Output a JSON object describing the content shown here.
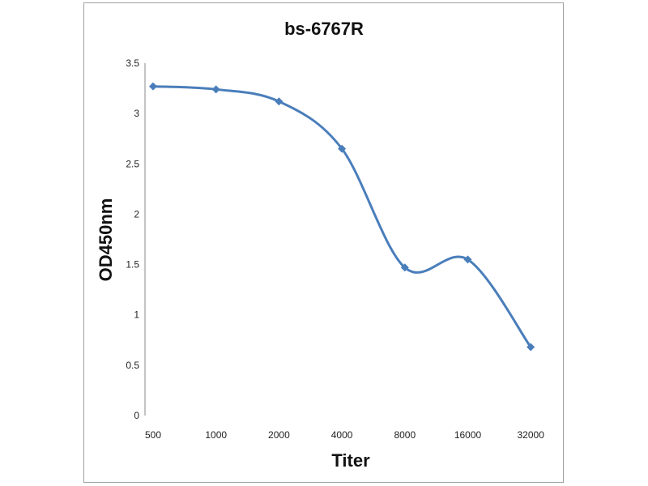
{
  "chart_data": {
    "type": "line",
    "title": "bs-6767R",
    "xlabel": "Titer",
    "ylabel": "OD450nm",
    "categories": [
      "500",
      "1000",
      "2000",
      "4000",
      "8000",
      "16000",
      "32000"
    ],
    "series": [
      {
        "name": "bs-6767R",
        "values": [
          3.27,
          3.24,
          3.12,
          2.65,
          1.47,
          1.55,
          0.68
        ],
        "color": "#4a7ebb"
      }
    ],
    "ylim": [
      0,
      3.5
    ],
    "yticks": [
      "0",
      "0.5",
      "1",
      "1.5",
      "2",
      "2.5",
      "3",
      "3.5"
    ],
    "grid": false,
    "smooth": true
  }
}
